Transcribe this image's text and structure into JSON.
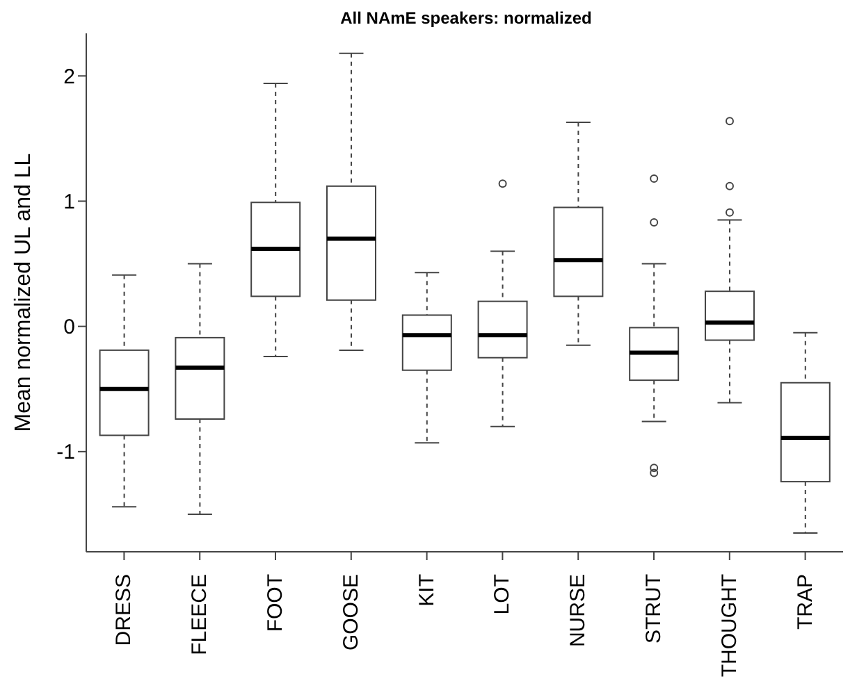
{
  "chart_data": {
    "type": "box",
    "title": "All NAmE speakers: normalized",
    "ylabel": "Mean normalized UL and LL",
    "categories": [
      "DRESS",
      "FLEECE",
      "FOOT",
      "GOOSE",
      "KIT",
      "LOT",
      "NURSE",
      "STRUT",
      "THOUGHT",
      "TRAP"
    ],
    "boxes": [
      {
        "low": -1.44,
        "q1": -0.87,
        "median": -0.5,
        "q3": -0.19,
        "high": 0.41
      },
      {
        "low": -1.5,
        "q1": -0.74,
        "median": -0.33,
        "q3": -0.09,
        "high": 0.5
      },
      {
        "low": -0.24,
        "q1": 0.24,
        "median": 0.62,
        "q3": 0.99,
        "high": 1.94
      },
      {
        "low": -0.19,
        "q1": 0.21,
        "median": 0.7,
        "q3": 1.12,
        "high": 2.18
      },
      {
        "low": -0.93,
        "q1": -0.35,
        "median": -0.07,
        "q3": 0.09,
        "high": 0.43
      },
      {
        "low": -0.8,
        "q1": -0.25,
        "median": -0.07,
        "q3": 0.2,
        "high": 0.6,
        "outliers": [
          1.14
        ]
      },
      {
        "low": -0.15,
        "q1": 0.24,
        "median": 0.53,
        "q3": 0.95,
        "high": 1.63
      },
      {
        "low": -0.76,
        "q1": -0.43,
        "median": -0.21,
        "q3": -0.01,
        "high": 0.5,
        "outliers": [
          1.18,
          0.83,
          -1.13,
          -1.17
        ]
      },
      {
        "low": -0.61,
        "q1": -0.11,
        "median": 0.03,
        "q3": 0.28,
        "high": 0.85,
        "outliers": [
          1.64,
          1.12,
          0.91
        ]
      },
      {
        "low": -1.65,
        "q1": -1.24,
        "median": -0.89,
        "q3": -0.45,
        "high": -0.05
      }
    ],
    "ylim": [
      -1.8,
      2.34
    ],
    "yticks": [
      -1,
      0,
      1,
      2
    ]
  }
}
